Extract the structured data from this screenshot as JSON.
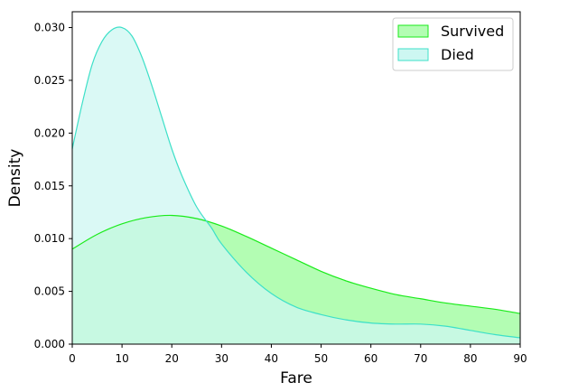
{
  "chart_data": {
    "type": "area",
    "title": "",
    "xlabel": "Fare",
    "ylabel": "Density",
    "xlim": [
      0,
      90
    ],
    "ylim": [
      0,
      0.0315
    ],
    "xticks": [
      0,
      10,
      20,
      30,
      40,
      50,
      60,
      70,
      80,
      90
    ],
    "xtick_labels": [
      "0",
      "10",
      "20",
      "30",
      "40",
      "50",
      "60",
      "70",
      "80",
      "90"
    ],
    "yticks": [
      0,
      0.005,
      0.01,
      0.015,
      0.02,
      0.025,
      0.03
    ],
    "ytick_labels": [
      "0.000",
      "0.005",
      "0.010",
      "0.015",
      "0.020",
      "0.025",
      "0.030"
    ],
    "grid": false,
    "legend_position": "top-right",
    "series": [
      {
        "name": "Survived",
        "line_color": "#1aeb1a",
        "fill_color": "#b3fdb3",
        "x": [
          0,
          5,
          10,
          15,
          20,
          25,
          30,
          35,
          40,
          45,
          50,
          55,
          60,
          65,
          70,
          75,
          80,
          85,
          90
        ],
        "y": [
          0.009,
          0.0104,
          0.0114,
          0.012,
          0.0122,
          0.0119,
          0.0112,
          0.0102,
          0.0091,
          0.008,
          0.0069,
          0.006,
          0.0053,
          0.0047,
          0.0043,
          0.0039,
          0.0036,
          0.0033,
          0.0029
        ]
      },
      {
        "name": "Died",
        "line_color": "#3de0c8",
        "fill_color": "#cdf7f2",
        "x": [
          0,
          2,
          4,
          6,
          8,
          10,
          12,
          14,
          16,
          18,
          20,
          22,
          25,
          28,
          30,
          35,
          40,
          45,
          50,
          55,
          60,
          65,
          70,
          75,
          80,
          85,
          90
        ],
        "y": [
          0.0185,
          0.0228,
          0.0265,
          0.0287,
          0.0298,
          0.03,
          0.0292,
          0.0272,
          0.0245,
          0.0215,
          0.0185,
          0.016,
          0.013,
          0.011,
          0.0095,
          0.0068,
          0.0048,
          0.0035,
          0.0028,
          0.0023,
          0.002,
          0.0019,
          0.0019,
          0.0017,
          0.0013,
          0.0009,
          0.0006
        ]
      }
    ]
  }
}
